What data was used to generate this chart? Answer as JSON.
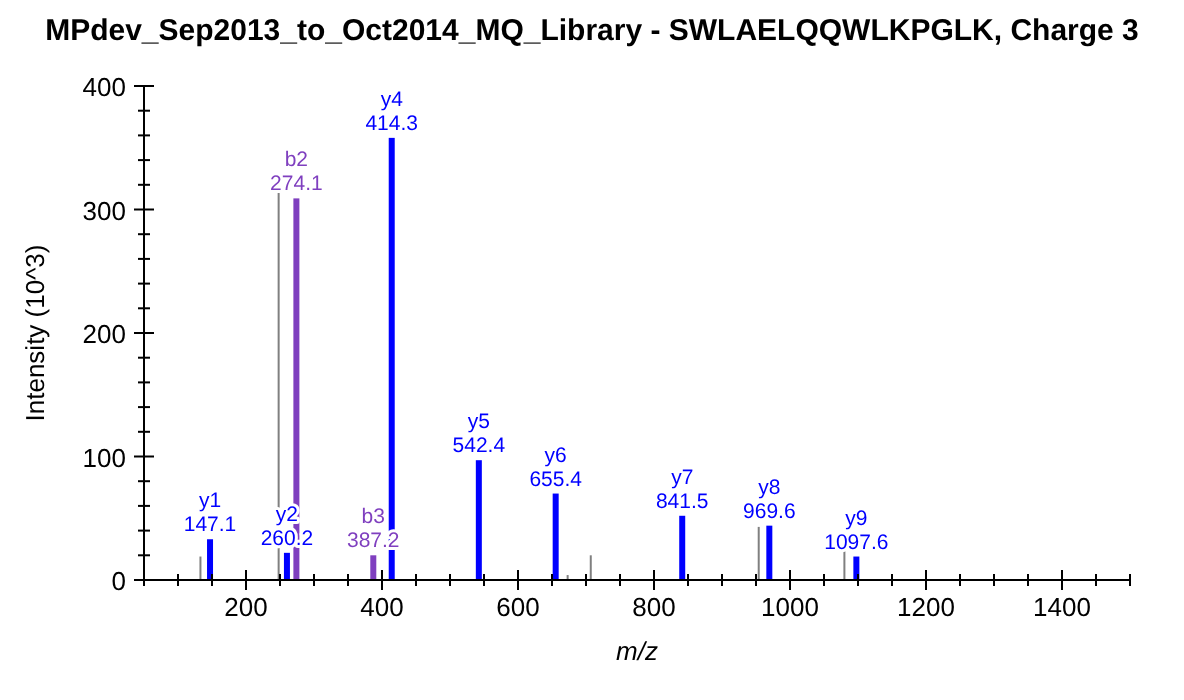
{
  "chart_data": {
    "type": "bar",
    "title": "MPdev_Sep2013_to_Oct2014_MQ_Library - SWLAELQQWLKPGLK, Charge 3",
    "xlabel": "m/z",
    "ylabel": "Intensity (10^3)",
    "xlim": [
      50,
      1500
    ],
    "ylim": [
      0,
      400
    ],
    "xticks": [
      {
        "value": 50,
        "label": null
      },
      {
        "value": 100,
        "label": null
      },
      {
        "value": 150,
        "label": null
      },
      200,
      {
        "value": 250,
        "label": null
      },
      {
        "value": 300,
        "label": null
      },
      {
        "value": 350,
        "label": null
      },
      400,
      {
        "value": 450,
        "label": null
      },
      {
        "value": 500,
        "label": null
      },
      {
        "value": 550,
        "label": null
      },
      600,
      {
        "value": 650,
        "label": null
      },
      {
        "value": 700,
        "label": null
      },
      {
        "value": 750,
        "label": null
      },
      800,
      {
        "value": 850,
        "label": null
      },
      {
        "value": 900,
        "label": null
      },
      {
        "value": 950,
        "label": null
      },
      1000,
      {
        "value": 1050,
        "label": null
      },
      {
        "value": 1100,
        "label": null
      },
      {
        "value": 1150,
        "label": null
      },
      1200,
      {
        "value": 1250,
        "label": null
      },
      {
        "value": 1300,
        "label": null
      },
      {
        "value": 1350,
        "label": null
      },
      1400,
      {
        "value": 1450,
        "label": null
      },
      {
        "value": 1500,
        "label": null
      }
    ],
    "yticks": [
      0,
      {
        "value": 20,
        "label": null
      },
      {
        "value": 40,
        "label": null
      },
      {
        "value": 60,
        "label": null
      },
      {
        "value": 80,
        "label": null
      },
      100,
      {
        "value": 120,
        "label": null
      },
      {
        "value": 140,
        "label": null
      },
      {
        "value": 160,
        "label": null
      },
      {
        "value": 180,
        "label": null
      },
      200,
      {
        "value": 220,
        "label": null
      },
      {
        "value": 240,
        "label": null
      },
      {
        "value": 260,
        "label": null
      },
      {
        "value": 280,
        "label": null
      },
      300,
      {
        "value": 320,
        "label": null
      },
      {
        "value": 340,
        "label": null
      },
      {
        "value": 360,
        "label": null
      },
      {
        "value": 380,
        "label": null
      },
      400
    ],
    "grid": false,
    "series": [
      {
        "color": "#808080",
        "x": [
          133,
          248,
          673,
          707,
          954,
          1080
        ],
        "values": [
          19,
          317,
          4,
          20,
          43,
          26
        ]
      },
      {
        "color": "#7f3fbf",
        "x": [
          274.1,
          387.2
        ],
        "values": [
          309,
          20
        ],
        "value_labels": [
          "b2\n274.1",
          "b3\n387.2"
        ]
      },
      {
        "color": "#0000ff",
        "x": [
          147.1,
          260.2,
          414.3,
          542.4,
          655.4,
          841.5,
          969.6,
          1097.6
        ],
        "values": [
          33,
          22,
          358,
          97,
          70,
          52,
          44,
          19
        ],
        "value_labels": [
          "y1\n147.1",
          "y2\n260.2",
          "y4\n414.3",
          "y5\n542.4",
          "y6\n655.4",
          "y7\n841.5",
          "y8\n969.6",
          "y9\n1097.6"
        ]
      }
    ]
  }
}
